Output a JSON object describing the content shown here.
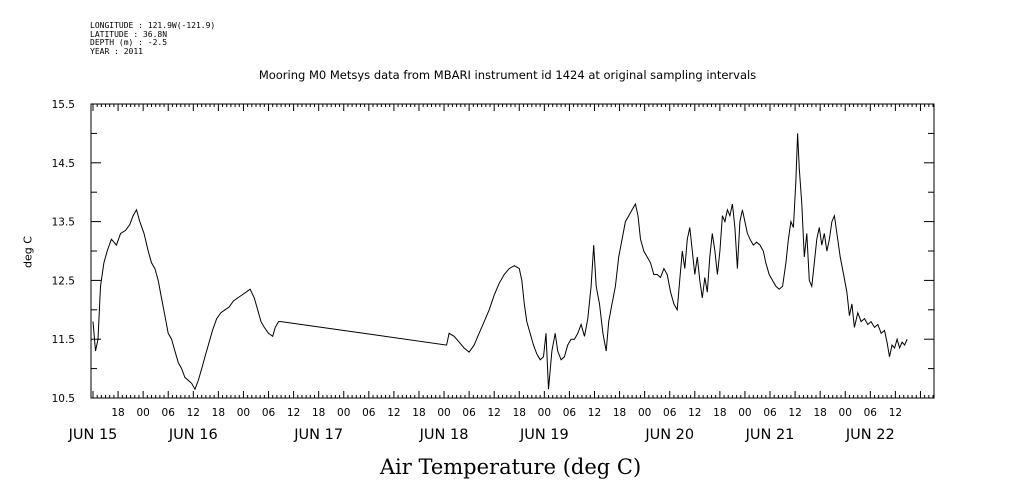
{
  "header": {
    "meta_lines": [
      "LONGITUDE : 121.9W(-121.9)",
      "LATITUDE : 36.8N",
      "DEPTH (m) : -2.5",
      "YEAR : 2011"
    ],
    "title": "Mooring M0 Metsys data from MBARI instrument id 1424 at original sampling intervals"
  },
  "chart_data": {
    "type": "line",
    "title": "Mooring M0 Metsys data from MBARI instrument id 1424 at original sampling intervals",
    "xlabel": "Air Temperature (deg C)",
    "ylabel": "deg C",
    "x_unit": "hours since 2011-06-14 12:00",
    "xlim": [
      0,
      201
    ],
    "ylim": [
      10.5,
      15.5
    ],
    "y_ticks": [
      "10.5",
      "11.5",
      "12.5",
      "13.5",
      "14.5",
      "15.5"
    ],
    "x_hour_labels": [
      {
        "x": 6,
        "label": "18"
      },
      {
        "x": 12,
        "label": "00"
      },
      {
        "x": 18,
        "label": "06"
      },
      {
        "x": 24,
        "label": "12"
      },
      {
        "x": 30,
        "label": "18"
      },
      {
        "x": 36,
        "label": "00"
      },
      {
        "x": 42,
        "label": "06"
      },
      {
        "x": 48,
        "label": "12"
      },
      {
        "x": 54,
        "label": "18"
      },
      {
        "x": 60,
        "label": "00"
      },
      {
        "x": 66,
        "label": "06"
      },
      {
        "x": 72,
        "label": "12"
      },
      {
        "x": 78,
        "label": "18"
      },
      {
        "x": 84,
        "label": "00"
      },
      {
        "x": 90,
        "label": "06"
      },
      {
        "x": 96,
        "label": "12"
      },
      {
        "x": 102,
        "label": "18"
      },
      {
        "x": 108,
        "label": "00"
      },
      {
        "x": 114,
        "label": "06"
      },
      {
        "x": 120,
        "label": "12"
      },
      {
        "x": 126,
        "label": "18"
      },
      {
        "x": 132,
        "label": "00"
      },
      {
        "x": 138,
        "label": "06"
      },
      {
        "x": 144,
        "label": "12"
      },
      {
        "x": 150,
        "label": "18"
      },
      {
        "x": 156,
        "label": "00"
      },
      {
        "x": 162,
        "label": "06"
      },
      {
        "x": 168,
        "label": "12"
      },
      {
        "x": 174,
        "label": "18"
      },
      {
        "x": 180,
        "label": "00"
      },
      {
        "x": 186,
        "label": "06"
      },
      {
        "x": 192,
        "label": "12"
      }
    ],
    "x_day_labels": [
      {
        "x": 0,
        "label": "JUN 15"
      },
      {
        "x": 24,
        "label": "JUN 16"
      },
      {
        "x": 54,
        "label": "JUN 17"
      },
      {
        "x": 84,
        "label": "JUN 18"
      },
      {
        "x": 108,
        "label": "JUN 19"
      },
      {
        "x": 138,
        "label": "JUN 20"
      },
      {
        "x": 162,
        "label": "JUN 21"
      },
      {
        "x": 186,
        "label": "JUN 22"
      }
    ],
    "series": [
      {
        "values": [
          [
            0.0,
            11.8
          ],
          [
            0.6,
            11.3
          ],
          [
            1.2,
            11.5
          ],
          [
            1.8,
            12.4
          ],
          [
            2.6,
            12.8
          ],
          [
            3.4,
            13.0
          ],
          [
            4.4,
            13.2
          ],
          [
            5.6,
            13.1
          ],
          [
            6.6,
            13.3
          ],
          [
            7.8,
            13.35
          ],
          [
            8.8,
            13.45
          ],
          [
            9.6,
            13.6
          ],
          [
            10.4,
            13.7
          ],
          [
            11.2,
            13.5
          ],
          [
            12.2,
            13.3
          ],
          [
            13.2,
            13.0
          ],
          [
            14.0,
            12.8
          ],
          [
            14.8,
            12.7
          ],
          [
            15.6,
            12.5
          ],
          [
            16.4,
            12.2
          ],
          [
            17.2,
            11.9
          ],
          [
            18.0,
            11.6
          ],
          [
            18.8,
            11.5
          ],
          [
            19.6,
            11.3
          ],
          [
            20.4,
            11.1
          ],
          [
            21.2,
            11.0
          ],
          [
            22.0,
            10.85
          ],
          [
            22.8,
            10.8
          ],
          [
            23.6,
            10.75
          ],
          [
            24.4,
            10.65
          ],
          [
            25.2,
            10.8
          ],
          [
            26.0,
            11.0
          ],
          [
            26.8,
            11.2
          ],
          [
            27.6,
            11.4
          ],
          [
            28.6,
            11.65
          ],
          [
            29.6,
            11.85
          ],
          [
            30.6,
            11.95
          ],
          [
            31.6,
            12.0
          ],
          [
            32.6,
            12.05
          ],
          [
            33.6,
            12.15
          ],
          [
            34.6,
            12.2
          ],
          [
            35.6,
            12.25
          ],
          [
            36.6,
            12.3
          ],
          [
            37.6,
            12.35
          ],
          [
            38.6,
            12.2
          ],
          [
            39.4,
            12.0
          ],
          [
            40.2,
            11.8
          ],
          [
            41.0,
            11.7
          ],
          [
            42.0,
            11.6
          ],
          [
            43.0,
            11.55
          ],
          [
            43.6,
            11.7
          ],
          [
            44.4,
            11.8
          ],
          [
            45.0,
            11.8
          ],
          [
            84.6,
            11.4
          ],
          [
            85.2,
            11.6
          ],
          [
            86.4,
            11.55
          ],
          [
            87.6,
            11.45
          ],
          [
            88.8,
            11.35
          ],
          [
            90.0,
            11.28
          ],
          [
            91.2,
            11.4
          ],
          [
            92.4,
            11.6
          ],
          [
            93.6,
            11.8
          ],
          [
            94.8,
            12.0
          ],
          [
            96.0,
            12.25
          ],
          [
            97.2,
            12.45
          ],
          [
            98.4,
            12.6
          ],
          [
            99.6,
            12.7
          ],
          [
            100.8,
            12.75
          ],
          [
            102.0,
            12.7
          ],
          [
            102.6,
            12.5
          ],
          [
            103.2,
            12.1
          ],
          [
            103.8,
            11.8
          ],
          [
            104.6,
            11.6
          ],
          [
            105.4,
            11.4
          ],
          [
            106.2,
            11.25
          ],
          [
            107.0,
            11.15
          ],
          [
            107.8,
            11.2
          ],
          [
            108.4,
            11.6
          ],
          [
            109.0,
            10.65
          ],
          [
            109.8,
            11.3
          ],
          [
            110.6,
            11.6
          ],
          [
            111.2,
            11.3
          ],
          [
            112.0,
            11.15
          ],
          [
            112.8,
            11.2
          ],
          [
            113.6,
            11.4
          ],
          [
            114.4,
            11.5
          ],
          [
            115.2,
            11.5
          ],
          [
            116.0,
            11.6
          ],
          [
            116.8,
            11.75
          ],
          [
            117.6,
            11.55
          ],
          [
            118.4,
            11.85
          ],
          [
            119.2,
            12.4
          ],
          [
            119.8,
            13.1
          ],
          [
            120.4,
            12.4
          ],
          [
            121.2,
            12.1
          ],
          [
            122.0,
            11.6
          ],
          [
            122.8,
            11.3
          ],
          [
            123.4,
            11.8
          ],
          [
            124.2,
            12.1
          ],
          [
            125.0,
            12.4
          ],
          [
            125.8,
            12.9
          ],
          [
            126.6,
            13.2
          ],
          [
            127.4,
            13.5
          ],
          [
            128.2,
            13.6
          ],
          [
            129.0,
            13.7
          ],
          [
            129.8,
            13.8
          ],
          [
            130.4,
            13.6
          ],
          [
            131.0,
            13.2
          ],
          [
            131.8,
            13.0
          ],
          [
            132.6,
            12.9
          ],
          [
            133.4,
            12.8
          ],
          [
            134.2,
            12.6
          ],
          [
            135.0,
            12.6
          ],
          [
            135.8,
            12.55
          ],
          [
            136.6,
            12.7
          ],
          [
            137.4,
            12.6
          ],
          [
            138.2,
            12.3
          ],
          [
            139.0,
            12.1
          ],
          [
            139.8,
            12.0
          ],
          [
            140.4,
            12.5
          ],
          [
            141.0,
            13.0
          ],
          [
            141.6,
            12.7
          ],
          [
            142.2,
            13.2
          ],
          [
            142.8,
            13.4
          ],
          [
            143.4,
            13.0
          ],
          [
            144.0,
            12.6
          ],
          [
            144.6,
            12.9
          ],
          [
            145.2,
            12.5
          ],
          [
            145.8,
            12.2
          ],
          [
            146.4,
            12.55
          ],
          [
            147.0,
            12.3
          ],
          [
            147.6,
            12.9
          ],
          [
            148.2,
            13.3
          ],
          [
            148.8,
            13.0
          ],
          [
            149.4,
            12.6
          ],
          [
            150.0,
            13.0
          ],
          [
            150.6,
            13.6
          ],
          [
            151.2,
            13.5
          ],
          [
            151.8,
            13.7
          ],
          [
            152.4,
            13.6
          ],
          [
            153.0,
            13.8
          ],
          [
            153.6,
            13.4
          ],
          [
            154.2,
            12.7
          ],
          [
            154.8,
            13.5
          ],
          [
            155.4,
            13.7
          ],
          [
            156.0,
            13.5
          ],
          [
            156.6,
            13.3
          ],
          [
            157.2,
            13.2
          ],
          [
            158.0,
            13.1
          ],
          [
            158.8,
            13.15
          ],
          [
            159.6,
            13.1
          ],
          [
            160.4,
            13.0
          ],
          [
            161.0,
            12.8
          ],
          [
            161.8,
            12.6
          ],
          [
            162.6,
            12.5
          ],
          [
            163.4,
            12.4
          ],
          [
            164.2,
            12.35
          ],
          [
            165.0,
            12.4
          ],
          [
            165.8,
            12.8
          ],
          [
            166.4,
            13.2
          ],
          [
            167.0,
            13.5
          ],
          [
            167.6,
            13.4
          ],
          [
            168.2,
            14.2
          ],
          [
            168.6,
            15.0
          ],
          [
            169.0,
            14.4
          ],
          [
            169.6,
            13.8
          ],
          [
            170.2,
            12.9
          ],
          [
            170.8,
            13.3
          ],
          [
            171.4,
            12.5
          ],
          [
            172.0,
            12.4
          ],
          [
            172.6,
            12.8
          ],
          [
            173.2,
            13.2
          ],
          [
            173.8,
            13.4
          ],
          [
            174.4,
            13.1
          ],
          [
            175.0,
            13.3
          ],
          [
            175.6,
            13.0
          ],
          [
            176.2,
            13.2
          ],
          [
            176.8,
            13.5
          ],
          [
            177.4,
            13.6
          ],
          [
            178.0,
            13.3
          ],
          [
            178.8,
            12.9
          ],
          [
            179.6,
            12.6
          ],
          [
            180.4,
            12.3
          ],
          [
            181.0,
            11.9
          ],
          [
            181.6,
            12.1
          ],
          [
            182.2,
            11.7
          ],
          [
            183.0,
            11.95
          ],
          [
            183.8,
            11.8
          ],
          [
            184.6,
            11.85
          ],
          [
            185.4,
            11.75
          ],
          [
            186.2,
            11.8
          ],
          [
            187.0,
            11.7
          ],
          [
            187.8,
            11.75
          ],
          [
            188.6,
            11.6
          ],
          [
            189.4,
            11.65
          ],
          [
            190.0,
            11.45
          ],
          [
            190.6,
            11.2
          ],
          [
            191.2,
            11.4
          ],
          [
            191.8,
            11.35
          ],
          [
            192.4,
            11.5
          ],
          [
            193.0,
            11.35
          ],
          [
            193.6,
            11.45
          ],
          [
            194.2,
            11.4
          ],
          [
            194.8,
            11.5
          ]
        ]
      }
    ]
  }
}
